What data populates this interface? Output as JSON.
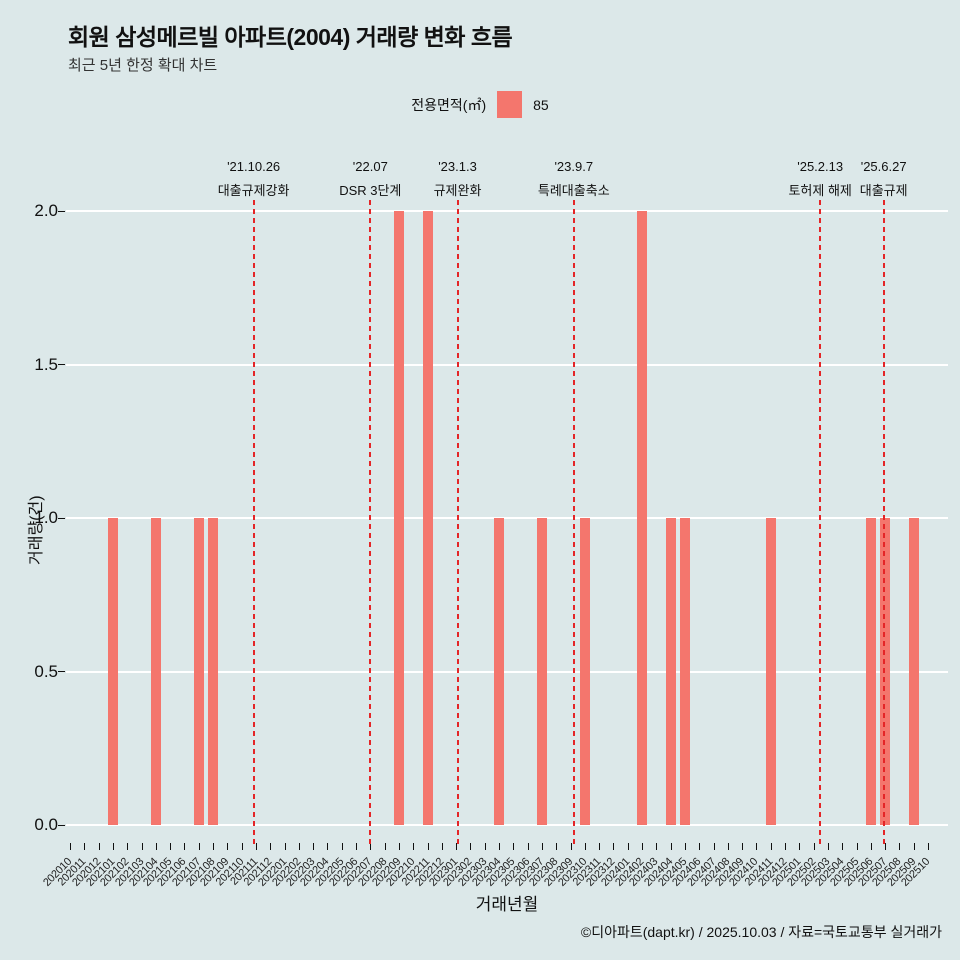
{
  "header": {
    "title": "회원 삼성메르빌 아파트(2004) 거래량 변화 흐름",
    "subtitle": "최근 5년 한정 확대 차트"
  },
  "legend": {
    "label": "전용면적(㎡)",
    "value": "85"
  },
  "colors": {
    "background": "#dce8e9",
    "bar": "#f4766d",
    "annotation": "#e42527",
    "grid": "#ffffff"
  },
  "chart_data": {
    "type": "bar",
    "title": "회원 삼성메르빌 아파트(2004) 거래량 변화 흐름",
    "xlabel": "거래년월",
    "ylabel": "거래량(건)",
    "ylim": [
      0,
      2.0
    ],
    "yticks": [
      "0.0",
      "0.5",
      "1.0",
      "1.5",
      "2.0"
    ],
    "grid": "horizontal",
    "legend_position": "top-center",
    "categories": [
      "202010",
      "202011",
      "202012",
      "202101",
      "202102",
      "202103",
      "202104",
      "202105",
      "202106",
      "202107",
      "202108",
      "202109",
      "202110",
      "202111",
      "202112",
      "202201",
      "202202",
      "202203",
      "202204",
      "202205",
      "202206",
      "202207",
      "202208",
      "202209",
      "202210",
      "202211",
      "202212",
      "202301",
      "202302",
      "202303",
      "202304",
      "202305",
      "202306",
      "202307",
      "202308",
      "202309",
      "202310",
      "202311",
      "202312",
      "202401",
      "202402",
      "202403",
      "202404",
      "202405",
      "202406",
      "202407",
      "202408",
      "202409",
      "202410",
      "202411",
      "202412",
      "202501",
      "202502",
      "202503",
      "202504",
      "202505",
      "202506",
      "202507",
      "202508",
      "202509",
      "202510"
    ],
    "values": [
      0,
      0,
      0,
      1,
      0,
      0,
      1,
      0,
      0,
      1,
      1,
      0,
      0,
      0,
      0,
      0,
      0,
      0,
      0,
      0,
      0,
      0,
      0,
      2,
      0,
      2,
      0,
      0,
      0,
      0,
      1,
      0,
      0,
      1,
      0,
      0,
      1,
      0,
      0,
      0,
      2,
      0,
      1,
      1,
      0,
      0,
      0,
      0,
      0,
      1,
      0,
      0,
      0,
      0,
      0,
      0,
      1,
      1,
      0,
      1,
      0
    ],
    "annotations": [
      {
        "date": "'21.10.26",
        "label": "대출규제강화",
        "month_index": 12.84
      },
      {
        "date": "'22.07",
        "label": "DSR 3단계",
        "month_index": 21.0
      },
      {
        "date": "'23.1.3",
        "label": "규제완화",
        "month_index": 27.1
      },
      {
        "date": "'23.9.7",
        "label": "특례대출축소",
        "month_index": 35.23
      },
      {
        "date": "'25.2.13",
        "label": "토허제 해제",
        "month_index": 52.46
      },
      {
        "date": "'25.6.27",
        "label": "대출규제",
        "month_index": 56.9
      }
    ]
  },
  "footer": {
    "credit": "©디아파트(dapt.kr) / 2025.10.03 / 자료=국토교통부 실거래가"
  }
}
